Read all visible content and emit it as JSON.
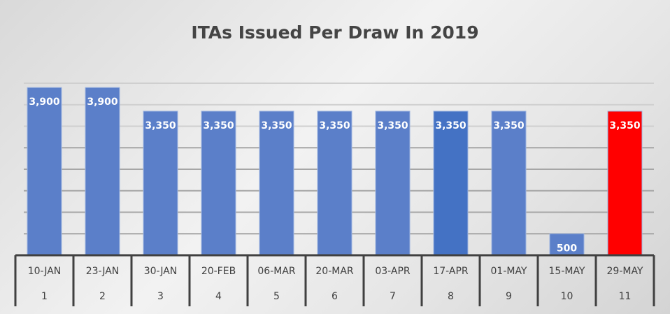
{
  "chart_data": {
    "type": "bar",
    "title": "ITAs Issued Per Draw In 2019",
    "categories": [
      "10-JAN",
      "23-JAN",
      "30-JAN",
      "20-FEB",
      "06-MAR",
      "20-MAR",
      "03-APR",
      "17-APR",
      "01-MAY",
      "15-MAY",
      "29-MAY"
    ],
    "draw_numbers": [
      "1",
      "2",
      "3",
      "4",
      "5",
      "6",
      "7",
      "8",
      "9",
      "10",
      "11"
    ],
    "values": [
      3900,
      3900,
      3350,
      3350,
      3350,
      3350,
      3350,
      3350,
      3350,
      500,
      3350
    ],
    "data_labels": [
      "3,900",
      "3,900",
      "3,350",
      "3,350",
      "3,350",
      "3,350",
      "3,350",
      "3,350",
      "3,350",
      "500",
      "3,350"
    ],
    "bar_colors": [
      "#5B7FC9",
      "#5B7FC9",
      "#5B7FC9",
      "#5B7FC9",
      "#5B7FC9",
      "#5B7FC9",
      "#5B7FC9",
      "#4472C4",
      "#5B7FC9",
      "#5B7FC9",
      "#FF0000"
    ],
    "xlabel": "",
    "ylabel": "",
    "ylim": [
      0,
      4000
    ],
    "gridline_step": 500,
    "grid": true,
    "legend": "none"
  }
}
